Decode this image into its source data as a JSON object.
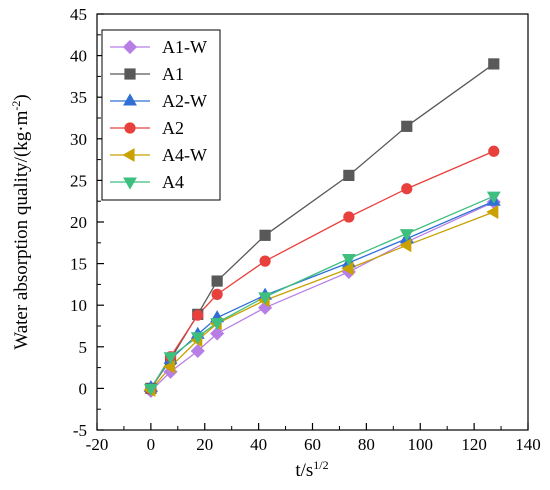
{
  "chart_data": {
    "type": "line",
    "title": "",
    "xlabel": "t/s",
    "xlabel_sup": "1/2",
    "ylabel": "Water absorption quality/(kg·m",
    "ylabel_sup": "-2",
    "ylabel_close": ")",
    "xlim": [
      -20,
      140
    ],
    "ylim": [
      -5,
      45
    ],
    "xticks": [
      -20,
      0,
      20,
      40,
      60,
      80,
      100,
      120,
      140
    ],
    "yticks": [
      -5,
      0,
      5,
      10,
      15,
      20,
      25,
      30,
      35,
      40,
      45
    ],
    "xtick_labels": [
      "-20",
      "0",
      "20",
      "40",
      "60",
      "80",
      "100",
      "120",
      "140"
    ],
    "ytick_labels": [
      "-5",
      "0",
      "5",
      "10",
      "15",
      "20",
      "25",
      "30",
      "35",
      "40",
      "45"
    ],
    "grid": false,
    "legend_position": "top-left",
    "series": [
      {
        "name": "A1-W",
        "color": "#b77fe6",
        "marker": "diamond",
        "x": [
          0,
          7.3,
          17.4,
          24.6,
          42.4,
          73.5,
          95,
          127.3
        ],
        "y": [
          -0.3,
          2.0,
          4.5,
          6.6,
          9.7,
          14.0,
          17.6,
          22.4
        ]
      },
      {
        "name": "A1",
        "color": "#595959",
        "marker": "square",
        "x": [
          0,
          7.3,
          17.4,
          24.6,
          42.4,
          73.5,
          95,
          127.3
        ],
        "y": [
          0,
          3.5,
          8.9,
          12.9,
          18.4,
          25.6,
          31.5,
          39.0
        ]
      },
      {
        "name": "A2-W",
        "color": "#2f6fd6",
        "marker": "triangle-up",
        "x": [
          0,
          7.3,
          17.4,
          24.6,
          42.4,
          73.5,
          95,
          127.3
        ],
        "y": [
          0.1,
          3.5,
          6.5,
          8.5,
          11.2,
          15.1,
          18.0,
          22.5
        ]
      },
      {
        "name": "A2",
        "color": "#e8403c",
        "marker": "circle",
        "x": [
          0,
          7.3,
          17.4,
          24.6,
          42.4,
          73.5,
          95,
          127.3
        ],
        "y": [
          -0.1,
          3.8,
          8.8,
          11.3,
          15.3,
          20.6,
          24.0,
          28.5
        ]
      },
      {
        "name": "A4-W",
        "color": "#c9a100",
        "marker": "triangle-left",
        "x": [
          0,
          7.3,
          17.4,
          24.6,
          42.4,
          73.5,
          95,
          127.3
        ],
        "y": [
          -0.2,
          2.6,
          5.8,
          7.8,
          10.6,
          14.4,
          17.2,
          21.2
        ]
      },
      {
        "name": "A4",
        "color": "#3fbf7f",
        "marker": "triangle-down",
        "x": [
          0,
          7.3,
          17.4,
          24.6,
          42.4,
          73.5,
          95,
          127.3
        ],
        "y": [
          0,
          3.8,
          6.2,
          7.9,
          11.0,
          15.6,
          18.6,
          23.1
        ]
      }
    ]
  }
}
